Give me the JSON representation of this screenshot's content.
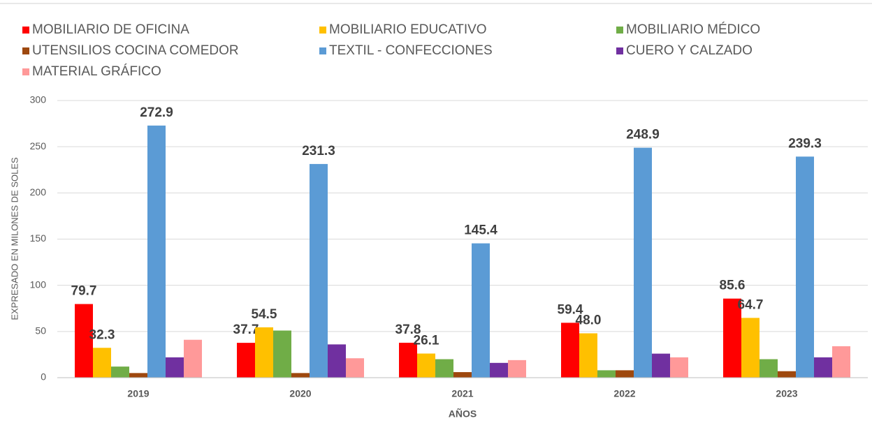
{
  "chart_data": {
    "type": "bar",
    "categories": [
      "2019",
      "2020",
      "2021",
      "2022",
      "2023"
    ],
    "series": [
      {
        "name": "MOBILIARIO DE OFICINA",
        "color": "#ff0000",
        "values": [
          79.7,
          37.7,
          37.8,
          59.4,
          85.6
        ],
        "value_labels": [
          "79.7",
          "37.7",
          "37.8",
          "59.4",
          "85.6"
        ]
      },
      {
        "name": "MOBILIARIO EDUCATIVO",
        "color": "#ffc000",
        "values": [
          32.3,
          54.5,
          26.1,
          48.0,
          64.7
        ],
        "value_labels": [
          "32.3",
          "54.5",
          "26.1",
          "48.0",
          "64.7"
        ]
      },
      {
        "name": "MOBILIARIO MÉDICO",
        "color": "#70ad47",
        "values": [
          12,
          51,
          20,
          8,
          20
        ]
      },
      {
        "name": "UTENSILIOS COCINA COMEDOR",
        "color": "#9e480e",
        "values": [
          5,
          5,
          6,
          8,
          7
        ]
      },
      {
        "name": "TEXTIL - CONFECCIONES",
        "color": "#5b9bd5",
        "values": [
          272.9,
          231.3,
          145.4,
          248.9,
          239.3
        ],
        "value_labels": [
          "272.9",
          "231.3",
          "145.4",
          "248.9",
          "239.3"
        ]
      },
      {
        "name": "CUERO Y CALZADO",
        "color": "#7030a0",
        "values": [
          22,
          36,
          16,
          26,
          22
        ]
      },
      {
        "name": "MATERIAL GRÁFICO",
        "color": "#ff9999",
        "values": [
          41,
          21,
          19,
          22,
          34
        ]
      }
    ],
    "x_label": "AÑOS",
    "y_label": "EXPRESADO EN MILONES DE SOLES",
    "ylim": [
      0,
      300
    ],
    "yticks": [
      0,
      50,
      100,
      150,
      200,
      250,
      300
    ],
    "grid": true,
    "legend": "top"
  }
}
